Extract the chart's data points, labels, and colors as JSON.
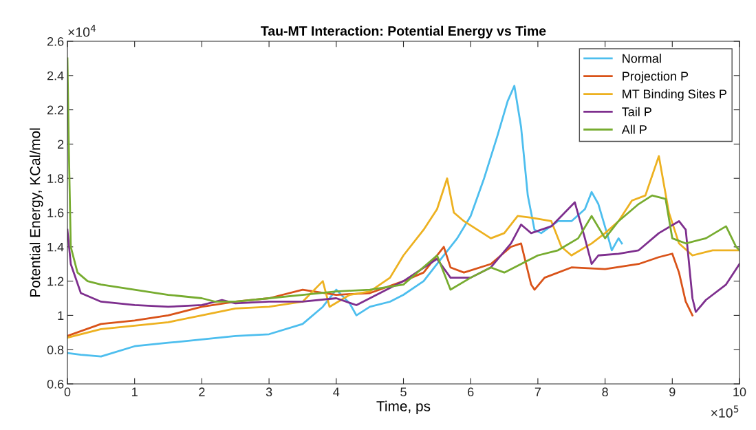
{
  "chart_data": {
    "type": "line",
    "title": "Tau-MT Interaction: Potential Energy vs Time",
    "xlabel": "Time, ps",
    "ylabel": "Potential Energy, KCal/mol",
    "annotations": [
      "×10$^{4}$",
      "×10$^{5}$"
    ],
    "xlim": [
      0,
      10
    ],
    "xticks": [
      0,
      1,
      2,
      3,
      4,
      5,
      6,
      7,
      8,
      9,
      10
    ],
    "ylim": [
      0.6,
      2.6
    ],
    "yticks": [
      0.6,
      0.8,
      1,
      1.2,
      1.4,
      1.6,
      1.8,
      2,
      2.2,
      2.4,
      2.6
    ],
    "grid": false,
    "legend": "top right",
    "marker": "none",
    "line_style": "solid",
    "series": [
      {
        "name": "Normal",
        "color": "#4dbeee",
        "x": [
          0,
          0.2,
          0.5,
          1,
          1.5,
          2,
          2.5,
          3,
          3.5,
          3.8,
          4.0,
          4.2,
          4.3,
          4.5,
          4.8,
          5.0,
          5.3,
          5.5,
          5.8,
          6.0,
          6.2,
          6.4,
          6.55,
          6.65,
          6.75,
          6.85,
          6.95,
          7.05,
          7.3,
          7.5,
          7.7,
          7.8,
          7.9,
          8.05,
          8.1,
          8.2,
          8.25
        ],
        "values": [
          0.78,
          0.77,
          0.76,
          0.82,
          0.84,
          0.86,
          0.88,
          0.89,
          0.95,
          1.05,
          1.15,
          1.07,
          1.0,
          1.05,
          1.08,
          1.12,
          1.2,
          1.3,
          1.45,
          1.58,
          1.8,
          2.05,
          2.25,
          2.34,
          2.1,
          1.7,
          1.5,
          1.48,
          1.55,
          1.55,
          1.62,
          1.72,
          1.65,
          1.45,
          1.38,
          1.45,
          1.42
        ]
      },
      {
        "name": "Projection P",
        "color": "#d95319",
        "x": [
          0,
          0.5,
          1,
          1.5,
          2,
          2.5,
          3,
          3.5,
          4,
          4.5,
          5,
          5.3,
          5.6,
          5.7,
          5.9,
          6.3,
          6.6,
          6.75,
          6.9,
          6.95,
          7.1,
          7.5,
          8,
          8.5,
          8.8,
          9.0,
          9.1,
          9.2,
          9.3
        ],
        "values": [
          0.88,
          0.95,
          0.97,
          1.0,
          1.05,
          1.08,
          1.1,
          1.15,
          1.12,
          1.13,
          1.2,
          1.25,
          1.4,
          1.28,
          1.25,
          1.3,
          1.4,
          1.42,
          1.18,
          1.15,
          1.22,
          1.28,
          1.27,
          1.3,
          1.34,
          1.36,
          1.25,
          1.08,
          1.0
        ]
      },
      {
        "name": "MT Binding Sites P",
        "color": "#edb120",
        "x": [
          0,
          0.5,
          1,
          1.5,
          2,
          2.5,
          3,
          3.5,
          3.8,
          3.9,
          4.2,
          4.5,
          4.8,
          5.0,
          5.3,
          5.5,
          5.65,
          5.75,
          5.9,
          6.1,
          6.3,
          6.5,
          6.7,
          6.9,
          7.2,
          7.35,
          7.5,
          7.8,
          8.0,
          8.2,
          8.4,
          8.6,
          8.8,
          8.95,
          9.1,
          9.3,
          9.6,
          10
        ],
        "values": [
          0.87,
          0.92,
          0.94,
          0.96,
          1.0,
          1.04,
          1.05,
          1.08,
          1.2,
          1.05,
          1.12,
          1.14,
          1.22,
          1.35,
          1.5,
          1.62,
          1.8,
          1.6,
          1.55,
          1.5,
          1.45,
          1.48,
          1.58,
          1.57,
          1.55,
          1.4,
          1.35,
          1.42,
          1.48,
          1.55,
          1.67,
          1.7,
          1.93,
          1.6,
          1.42,
          1.35,
          1.38,
          1.38
        ]
      },
      {
        "name": "Tail P",
        "color": "#7e2f8e",
        "x": [
          0,
          0.05,
          0.2,
          0.5,
          1,
          1.5,
          2,
          2.3,
          2.5,
          3,
          3.5,
          4,
          4.3,
          4.5,
          5,
          5.5,
          5.7,
          6,
          6.3,
          6.6,
          6.75,
          6.9,
          7.2,
          7.4,
          7.55,
          7.7,
          7.8,
          7.9,
          8.2,
          8.5,
          8.8,
          9.1,
          9.2,
          9.3,
          9.35,
          9.5,
          9.8,
          10
        ],
        "values": [
          1.5,
          1.3,
          1.13,
          1.08,
          1.06,
          1.05,
          1.06,
          1.09,
          1.07,
          1.08,
          1.08,
          1.1,
          1.06,
          1.1,
          1.2,
          1.33,
          1.22,
          1.22,
          1.28,
          1.42,
          1.53,
          1.48,
          1.52,
          1.6,
          1.66,
          1.45,
          1.3,
          1.35,
          1.36,
          1.38,
          1.48,
          1.55,
          1.5,
          1.1,
          1.02,
          1.09,
          1.18,
          1.3
        ]
      },
      {
        "name": "All P",
        "color": "#77ac30",
        "x": [
          0,
          0.02,
          0.05,
          0.15,
          0.3,
          0.5,
          1,
          1.5,
          2,
          2.2,
          2.5,
          3,
          3.5,
          4,
          4.5,
          5,
          5.5,
          5.7,
          6,
          6.3,
          6.5,
          6.75,
          7,
          7.3,
          7.6,
          7.8,
          8.0,
          8.2,
          8.5,
          8.7,
          8.9,
          9.0,
          9.2,
          9.5,
          9.8,
          9.95,
          10
        ],
        "values": [
          2.5,
          2.0,
          1.4,
          1.25,
          1.2,
          1.18,
          1.15,
          1.12,
          1.1,
          1.08,
          1.08,
          1.1,
          1.12,
          1.14,
          1.15,
          1.18,
          1.35,
          1.15,
          1.22,
          1.28,
          1.25,
          1.3,
          1.35,
          1.38,
          1.45,
          1.58,
          1.45,
          1.55,
          1.65,
          1.7,
          1.68,
          1.45,
          1.42,
          1.45,
          1.52,
          1.4,
          1.38
        ]
      }
    ]
  }
}
